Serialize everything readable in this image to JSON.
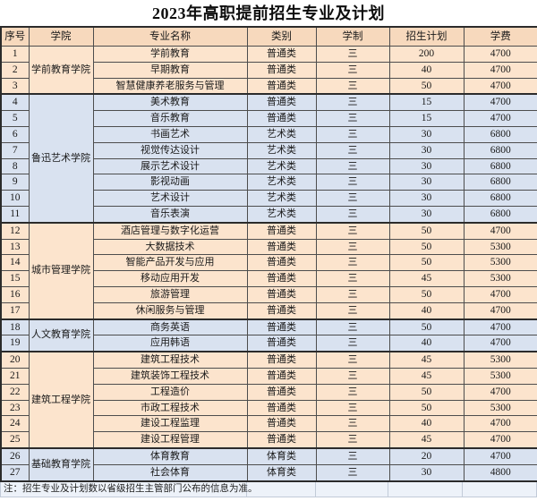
{
  "title": "2023年高职提前招生专业及计划",
  "note": "注：招生专业及计划数以省级招生主管部门公布的信息为准。",
  "colors": {
    "header_bg": "#f7d9bd",
    "group_peach": "#fce4cd",
    "group_blue": "#d9e2f0",
    "border_dark": "#2b2b2b",
    "note_bg": "#edf2f9"
  },
  "table": {
    "headers": [
      "序号",
      "学院",
      "专业名称",
      "类别",
      "学制",
      "招生计划",
      "学费"
    ],
    "groups": [
      {
        "college": "学前教育学院",
        "color_key": "peach",
        "rows": [
          {
            "no": "1",
            "major": "学前教育",
            "category": "普通类",
            "duration": "三",
            "plan": "200",
            "fee": "4700"
          },
          {
            "no": "2",
            "major": "早期教育",
            "category": "普通类",
            "duration": "三",
            "plan": "40",
            "fee": "4700"
          },
          {
            "no": "3",
            "major": "智慧健康养老服务与管理",
            "category": "普通类",
            "duration": "三",
            "plan": "50",
            "fee": "4700"
          }
        ]
      },
      {
        "college": "鲁迅艺术学院",
        "color_key": "blue",
        "rows": [
          {
            "no": "4",
            "major": "美术教育",
            "category": "普通类",
            "duration": "三",
            "plan": "15",
            "fee": "4700"
          },
          {
            "no": "5",
            "major": "音乐教育",
            "category": "普通类",
            "duration": "三",
            "plan": "15",
            "fee": "4700"
          },
          {
            "no": "6",
            "major": "书画艺术",
            "category": "艺术类",
            "duration": "三",
            "plan": "30",
            "fee": "6800"
          },
          {
            "no": "7",
            "major": "视觉传达设计",
            "category": "艺术类",
            "duration": "三",
            "plan": "30",
            "fee": "6800"
          },
          {
            "no": "8",
            "major": "展示艺术设计",
            "category": "艺术类",
            "duration": "三",
            "plan": "30",
            "fee": "6800"
          },
          {
            "no": "9",
            "major": "影视动画",
            "category": "艺术类",
            "duration": "三",
            "plan": "30",
            "fee": "6800"
          },
          {
            "no": "10",
            "major": "艺术设计",
            "category": "艺术类",
            "duration": "三",
            "plan": "30",
            "fee": "6800"
          },
          {
            "no": "11",
            "major": "音乐表演",
            "category": "艺术类",
            "duration": "三",
            "plan": "30",
            "fee": "6800"
          }
        ]
      },
      {
        "college": "城市管理学院",
        "color_key": "peach",
        "rows": [
          {
            "no": "12",
            "major": "酒店管理与数字化运营",
            "category": "普通类",
            "duration": "三",
            "plan": "50",
            "fee": "4700"
          },
          {
            "no": "13",
            "major": "大数据技术",
            "category": "普通类",
            "duration": "三",
            "plan": "50",
            "fee": "5300"
          },
          {
            "no": "14",
            "major": "智能产品开发与应用",
            "category": "普通类",
            "duration": "三",
            "plan": "50",
            "fee": "5300"
          },
          {
            "no": "15",
            "major": "移动应用开发",
            "category": "普通类",
            "duration": "三",
            "plan": "45",
            "fee": "5300"
          },
          {
            "no": "16",
            "major": "旅游管理",
            "category": "普通类",
            "duration": "三",
            "plan": "50",
            "fee": "4700"
          },
          {
            "no": "17",
            "major": "休闲服务与管理",
            "category": "普通类",
            "duration": "三",
            "plan": "40",
            "fee": "4700"
          }
        ]
      },
      {
        "college": "人文教育学院",
        "color_key": "blue",
        "rows": [
          {
            "no": "18",
            "major": "商务英语",
            "category": "普通类",
            "duration": "三",
            "plan": "50",
            "fee": "4700"
          },
          {
            "no": "19",
            "major": "应用韩语",
            "category": "普通类",
            "duration": "三",
            "plan": "40",
            "fee": "4700"
          }
        ]
      },
      {
        "college": "建筑工程学院",
        "color_key": "peach",
        "rows": [
          {
            "no": "20",
            "major": "建筑工程技术",
            "category": "普通类",
            "duration": "三",
            "plan": "45",
            "fee": "5300"
          },
          {
            "no": "21",
            "major": "建筑装饰工程技术",
            "category": "普通类",
            "duration": "三",
            "plan": "45",
            "fee": "5300"
          },
          {
            "no": "22",
            "major": "工程造价",
            "category": "普通类",
            "duration": "三",
            "plan": "50",
            "fee": "4700"
          },
          {
            "no": "23",
            "major": "市政工程技术",
            "category": "普通类",
            "duration": "三",
            "plan": "50",
            "fee": "5300"
          },
          {
            "no": "24",
            "major": "建设工程监理",
            "category": "普通类",
            "duration": "三",
            "plan": "40",
            "fee": "4700"
          },
          {
            "no": "25",
            "major": "建设工程管理",
            "category": "普通类",
            "duration": "三",
            "plan": "45",
            "fee": "4700"
          }
        ]
      },
      {
        "college": "基础教育学院",
        "color_key": "blue",
        "rows": [
          {
            "no": "26",
            "major": "体育教育",
            "category": "体育类",
            "duration": "三",
            "plan": "20",
            "fee": "4700"
          },
          {
            "no": "27",
            "major": "社会体育",
            "category": "体育类",
            "duration": "三",
            "plan": "30",
            "fee": "4800"
          }
        ]
      }
    ]
  }
}
